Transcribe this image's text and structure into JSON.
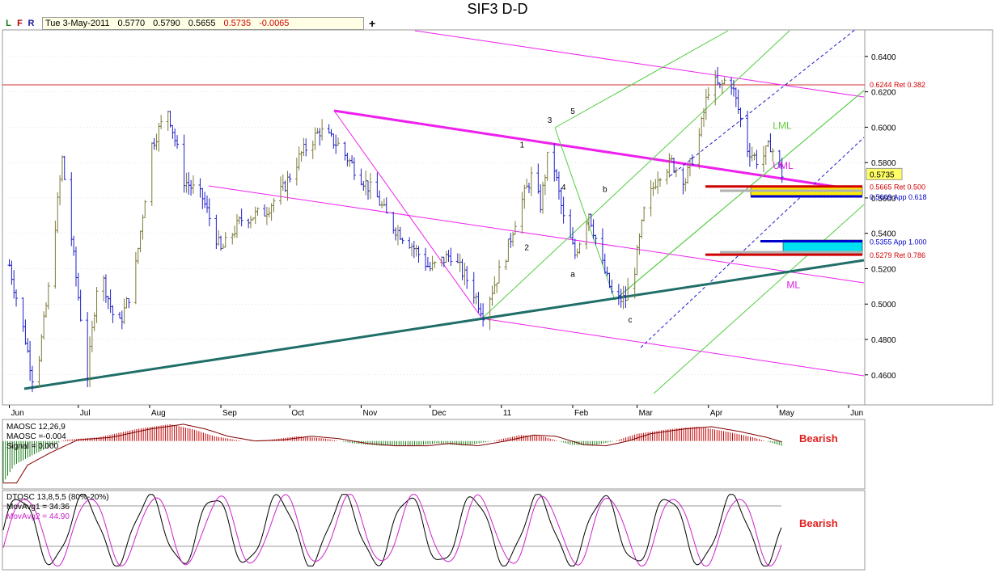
{
  "title": "SIF3 D-D",
  "toolbar": {
    "buttons": [
      {
        "label": "L",
        "color": "#0a7a0a"
      },
      {
        "label": "F",
        "color": "#b00000"
      },
      {
        "label": "R",
        "color": "#1a1aa0"
      }
    ],
    "date": "Tue 3-May-2011",
    "open": "0.5770",
    "high": "0.5790",
    "low": "0.5655",
    "close": "0.5735",
    "change": "-0.0065",
    "add_icon": "plus-icon"
  },
  "chart_data": [
    {
      "type": "bar",
      "subtype": "ohlc",
      "title": "SIF3 D-D",
      "x_ticks": [
        "Jun",
        "Jul",
        "Aug",
        "Sep",
        "Oct",
        "Nov",
        "Dec",
        "11",
        "Feb",
        "Mar",
        "Apr",
        "May",
        "Jun"
      ],
      "y_ticks": [
        "0.4600",
        "0.4800",
        "0.5000",
        "0.5200",
        "0.5400",
        "0.5600",
        "0.5800",
        "0.6000",
        "0.6200",
        "0.6400"
      ],
      "ylim": [
        0.443,
        0.655
      ],
      "last_price": "0.5735",
      "colors": {
        "up": "#7c7a3a",
        "down": "#2020c8",
        "grid": "#c8c8c8"
      },
      "price_path": [
        [
          "2010-06-01",
          0.522
        ],
        [
          "2010-06-08",
          0.48
        ],
        [
          "2010-06-12",
          0.452
        ],
        [
          "2010-06-18",
          0.508
        ],
        [
          "2010-06-24",
          0.582
        ],
        [
          "2010-06-30",
          0.515
        ],
        [
          "2010-07-05",
          0.46
        ],
        [
          "2010-07-10",
          0.522
        ],
        [
          "2010-07-18",
          0.485
        ],
        [
          "2010-07-25",
          0.512
        ],
        [
          "2010-08-02",
          0.59
        ],
        [
          "2010-08-09",
          0.61
        ],
        [
          "2010-08-16",
          0.57
        ],
        [
          "2010-08-24",
          0.56
        ],
        [
          "2010-09-01",
          0.53
        ],
        [
          "2010-09-10",
          0.548
        ],
        [
          "2010-09-20",
          0.552
        ],
        [
          "2010-09-28",
          0.565
        ],
        [
          "2010-10-06",
          0.585
        ],
        [
          "2010-10-14",
          0.598
        ],
        [
          "2010-10-22",
          0.59
        ],
        [
          "2010-10-30",
          0.575
        ],
        [
          "2010-11-08",
          0.56
        ],
        [
          "2010-11-14",
          0.545
        ],
        [
          "2010-11-22",
          0.535
        ],
        [
          "2010-12-01",
          0.52
        ],
        [
          "2010-12-10",
          0.528
        ],
        [
          "2010-12-18",
          0.512
        ],
        [
          "2010-12-24",
          0.495
        ],
        [
          "2011-01-03",
          0.528
        ],
        [
          "2011-01-08",
          0.552
        ],
        [
          "2011-01-14",
          0.572
        ],
        [
          "2011-01-18",
          0.556
        ],
        [
          "2011-01-22",
          0.591
        ],
        [
          "2011-01-28",
          0.548
        ],
        [
          "2011-02-02",
          0.528
        ],
        [
          "2011-02-08",
          0.552
        ],
        [
          "2011-02-14",
          0.522
        ],
        [
          "2011-02-19",
          0.502
        ],
        [
          "2011-02-24",
          0.503
        ],
        [
          "2011-02-28",
          0.52
        ],
        [
          "2011-03-04",
          0.552
        ],
        [
          "2011-03-10",
          0.573
        ],
        [
          "2011-03-16",
          0.58
        ],
        [
          "2011-03-22",
          0.57
        ],
        [
          "2011-03-28",
          0.595
        ],
        [
          "2011-04-02",
          0.628
        ],
        [
          "2011-04-06",
          0.622
        ],
        [
          "2011-04-10",
          0.63
        ],
        [
          "2011-04-14",
          0.61
        ],
        [
          "2011-04-18",
          0.588
        ],
        [
          "2011-04-23",
          0.58
        ],
        [
          "2011-04-28",
          0.59
        ],
        [
          "2011-05-03",
          0.5735
        ]
      ],
      "wave_labels": [
        {
          "text": "1",
          "date": "2011-01-10",
          "y": 0.5885
        },
        {
          "text": "2",
          "date": "2011-01-12",
          "y": 0.5305
        },
        {
          "text": "3",
          "date": "2011-01-22",
          "y": 0.6025
        },
        {
          "text": "4",
          "date": "2011-01-28",
          "y": 0.5645
        },
        {
          "text": "5",
          "date": "2011-02-01",
          "y": 0.6075
        },
        {
          "text": "a",
          "date": "2011-02-01",
          "y": 0.5155
        },
        {
          "text": "b",
          "date": "2011-02-15",
          "y": 0.5635
        },
        {
          "text": "c",
          "date": "2011-02-26",
          "y": 0.4895
        }
      ],
      "levels": [
        {
          "label": "0.6244 Ret 0.382",
          "y": 0.6244,
          "color": "#d00000"
        },
        {
          "label": "0.5665 Ret 0.500",
          "y": 0.5665,
          "color": "#d00000"
        },
        {
          "label": "0.5609 App 0.618",
          "y": 0.5609,
          "color": "#0000cc"
        },
        {
          "label": "0.5355 App 1.000",
          "y": 0.5355,
          "color": "#0000cc"
        },
        {
          "label": "0.5279 Ret 0.786",
          "y": 0.5279,
          "color": "#d00000"
        }
      ],
      "pitchfork_labels": [
        {
          "text": "LML",
          "date": "2011-04-29",
          "y": 0.599,
          "color": "#66cc44"
        },
        {
          "text": "UML",
          "date": "2011-04-29",
          "y": 0.5765,
          "color": "#e020e0"
        },
        {
          "text": "ML",
          "date": "2011-05-05",
          "y": 0.509,
          "color": "#e020e0"
        }
      ]
    },
    {
      "type": "bar",
      "subtype": "macd-histogram",
      "legend": [
        "MAOSC 12,26,9",
        "MAOSC =-0.004",
        "Signal = 0.000"
      ],
      "signal": "Bearish",
      "colors": {
        "positive": "#c00000",
        "negative": "#208020",
        "signal": "#800000"
      },
      "histogram_path": [
        [
          0,
          -0.035
        ],
        [
          10,
          -0.02
        ],
        [
          30,
          -0.01
        ],
        [
          55,
          0.001
        ],
        [
          85,
          0.003
        ],
        [
          120,
          0.01
        ],
        [
          150,
          0.014
        ],
        [
          170,
          0.01
        ],
        [
          190,
          0.004
        ],
        [
          215,
          0.0
        ],
        [
          240,
          0.001
        ],
        [
          265,
          0.004
        ],
        [
          290,
          0.002
        ],
        [
          315,
          -0.002
        ],
        [
          340,
          -0.004
        ],
        [
          370,
          -0.004
        ],
        [
          390,
          -0.002
        ],
        [
          415,
          -0.004
        ],
        [
          440,
          0.0
        ],
        [
          465,
          0.005
        ],
        [
          485,
          0.004
        ],
        [
          510,
          -0.003
        ],
        [
          530,
          -0.004
        ],
        [
          550,
          0.0
        ],
        [
          570,
          0.006
        ],
        [
          600,
          0.01
        ],
        [
          625,
          0.012
        ],
        [
          650,
          0.008
        ],
        [
          675,
          0.003
        ],
        [
          700,
          -0.004
        ]
      ],
      "ylim": [
        -0.04,
        0.018
      ]
    },
    {
      "type": "line",
      "subtype": "oscillator",
      "legend": [
        "DTOSC 13,8,5,5 (80%-20%)",
        "MovAvg1 = 34.36",
        "MovAvg2 = 44.90"
      ],
      "signal": "Bearish",
      "series": [
        {
          "name": "MovAvg1",
          "color": "#000000"
        },
        {
          "name": "MovAvg2",
          "color": "#cc22cc"
        }
      ],
      "last_values": [
        34.36,
        44.9
      ],
      "bands": [
        80,
        20
      ],
      "ylim": [
        0,
        100
      ]
    }
  ]
}
